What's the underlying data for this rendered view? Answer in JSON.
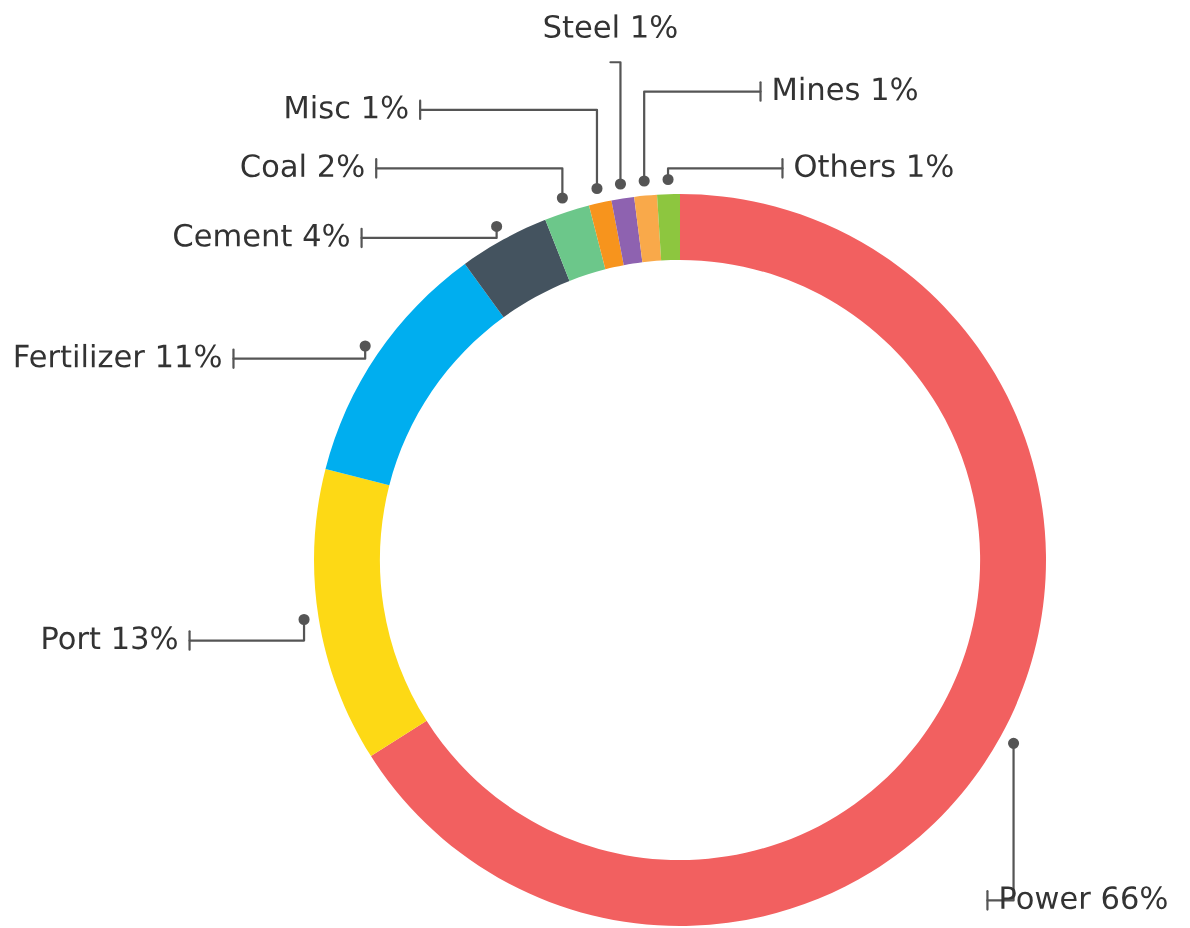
{
  "chart_data": {
    "type": "donut",
    "categories": [
      "Power",
      "Port",
      "Fertilizer",
      "Cement",
      "Coal",
      "Misc",
      "Steel",
      "Mines",
      "Others"
    ],
    "values": [
      66,
      13,
      11,
      4,
      2,
      1,
      1,
      1,
      1
    ],
    "value_labels": [
      "66%",
      "13%",
      "11%",
      "4%",
      "2%",
      "1%",
      "1%",
      "1%",
      "1%"
    ],
    "colors": [
      "#f26060",
      "#fdd915",
      "#00aeef",
      "#44535f",
      "#6cc78a",
      "#f7941d",
      "#8e62b0",
      "#f9a94a",
      "#8dc63f"
    ]
  }
}
